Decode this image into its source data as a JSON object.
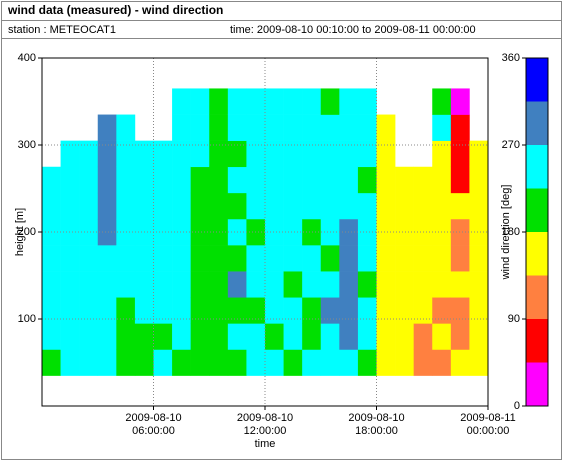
{
  "chart_data": {
    "type": "heatmap",
    "title": "wind data (measured) - wind direction",
    "station": "station : METEOCAT1",
    "time_range": "time: 2009-08-10 00:10:00 to 2009-08-11 00:00:00",
    "xlabel": "time",
    "ylabel": "height [m]",
    "colorbar_label": "wind direction [deg]",
    "xlim": [
      0,
      24
    ],
    "ylim": [
      0,
      400
    ],
    "xticks": [
      {
        "value": 6,
        "label": "2009-08-10\n06:00:00"
      },
      {
        "value": 12,
        "label": "2009-08-10\n12:00:00"
      },
      {
        "value": 18,
        "label": "2009-08-10\n18:00:00"
      },
      {
        "value": 24,
        "label": "2009-08-11\n00:00:00"
      }
    ],
    "yticks": [
      100,
      200,
      300,
      400
    ],
    "grid": true,
    "x_bins": [
      0,
      1,
      2,
      3,
      4,
      5,
      6,
      7,
      8,
      9,
      10,
      11,
      12,
      13,
      14,
      15,
      16,
      17,
      18,
      19,
      20,
      21,
      22,
      23,
      24
    ],
    "y_bins": [
      35,
      65,
      95,
      125,
      155,
      185,
      215,
      245,
      275,
      305,
      335,
      365
    ],
    "z": [
      [
        200,
        250,
        250,
        250,
        250,
        250,
        250,
        250,
        null,
        null,
        null
      ],
      [
        250,
        250,
        250,
        250,
        250,
        250,
        250,
        250,
        250,
        null,
        null
      ],
      [
        250,
        250,
        250,
        250,
        250,
        250,
        250,
        250,
        250,
        null,
        null
      ],
      [
        250,
        250,
        250,
        250,
        250,
        290,
        290,
        290,
        290,
        290,
        null
      ],
      [
        200,
        200,
        200,
        250,
        250,
        250,
        250,
        250,
        250,
        250,
        null
      ],
      [
        200,
        200,
        250,
        250,
        250,
        250,
        250,
        250,
        250,
        null,
        null
      ],
      [
        250,
        200,
        250,
        250,
        250,
        250,
        250,
        250,
        250,
        null,
        null
      ],
      [
        200,
        250,
        250,
        250,
        250,
        250,
        250,
        250,
        250,
        250,
        250
      ],
      [
        200,
        200,
        200,
        200,
        200,
        200,
        200,
        200,
        250,
        250,
        250
      ],
      [
        200,
        200,
        200,
        200,
        200,
        200,
        200,
        200,
        200,
        200,
        200
      ],
      [
        200,
        250,
        200,
        290,
        200,
        250,
        200,
        250,
        200,
        250,
        250
      ],
      [
        250,
        250,
        200,
        250,
        250,
        200,
        250,
        250,
        250,
        250,
        250
      ],
      [
        250,
        200,
        250,
        250,
        250,
        250,
        250,
        250,
        250,
        250,
        250
      ],
      [
        200,
        250,
        250,
        200,
        250,
        250,
        250,
        250,
        250,
        250,
        250
      ],
      [
        250,
        200,
        200,
        250,
        250,
        200,
        250,
        250,
        250,
        250,
        250
      ],
      [
        250,
        250,
        290,
        250,
        200,
        250,
        250,
        250,
        250,
        250,
        200
      ],
      [
        250,
        290,
        290,
        290,
        290,
        290,
        250,
        250,
        250,
        250,
        250
      ],
      [
        200,
        250,
        250,
        200,
        250,
        250,
        250,
        200,
        250,
        250,
        250
      ],
      [
        160,
        160,
        160,
        160,
        160,
        160,
        160,
        160,
        160,
        160,
        null
      ],
      [
        160,
        160,
        160,
        160,
        160,
        160,
        160,
        160,
        null,
        null,
        null
      ],
      [
        110,
        110,
        160,
        160,
        160,
        160,
        160,
        160,
        null,
        null,
        null
      ],
      [
        110,
        160,
        110,
        160,
        160,
        160,
        160,
        160,
        160,
        250,
        200
      ],
      [
        160,
        110,
        110,
        160,
        110,
        110,
        160,
        70,
        70,
        70,
        20
      ],
      [
        160,
        160,
        160,
        160,
        160,
        160,
        160,
        160,
        160,
        null,
        null
      ]
    ],
    "color_bins": [
      0,
      45,
      90,
      135,
      180,
      225,
      270,
      315,
      360
    ],
    "colors": [
      "#ff00ff",
      "#ff0000",
      "#ff8040",
      "#ffff00",
      "#00e000",
      "#00ffff",
      "#4080c0",
      "#0000ff"
    ],
    "colorbar_ticks": [
      0,
      90,
      180,
      270,
      360
    ]
  }
}
